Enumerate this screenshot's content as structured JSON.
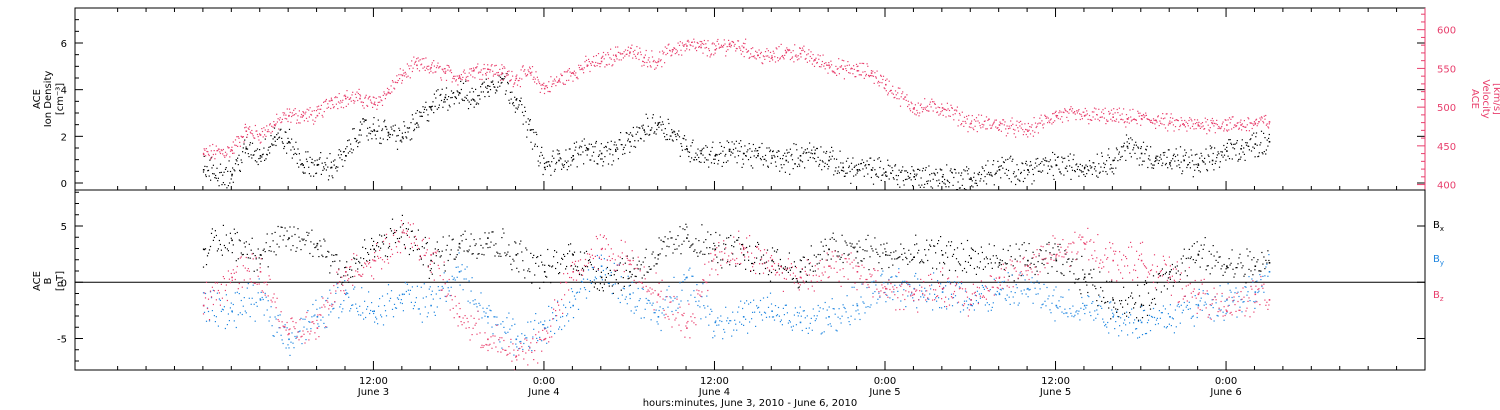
{
  "chart_data": [
    {
      "type": "scatter",
      "panel": "top",
      "ylabel_left": [
        "ACE",
        "Ion Density",
        "[cm⁻³]"
      ],
      "ylabel_right": [
        "ACE",
        "Velocity",
        "[km/s]"
      ],
      "y_left_range": [
        -0.3,
        7.5
      ],
      "y_left_ticks": [
        0,
        2,
        4,
        6
      ],
      "y_right_range": [
        393,
        628
      ],
      "y_right_ticks": [
        400,
        450,
        500,
        550,
        600
      ],
      "colors": {
        "density": "#000000",
        "velocity": "#e83e6c"
      },
      "series": [
        {
          "name": "density",
          "axis": "left",
          "x_hours": [
            0,
            2,
            3,
            4,
            5,
            6,
            7,
            8,
            9,
            10,
            11,
            12,
            13,
            14,
            15,
            16,
            17,
            18,
            19,
            20,
            21,
            22,
            23,
            24,
            25,
            26,
            27,
            28,
            29,
            30,
            31,
            32,
            33,
            34,
            35,
            36,
            37,
            38,
            39,
            40,
            41,
            42,
            43,
            44,
            45,
            46,
            47,
            48,
            50,
            52,
            54,
            56,
            58,
            60,
            62,
            64,
            65,
            66,
            67,
            68,
            69,
            70,
            71,
            72,
            73,
            74,
            75
          ],
          "y": [
            0.6,
            0.4,
            1.5,
            1.2,
            2.0,
            1.8,
            0.8,
            0.8,
            0.7,
            1.2,
            2.3,
            2.3,
            2.2,
            2.0,
            2.6,
            3.3,
            3.7,
            3.9,
            3.6,
            4.2,
            4.5,
            3.6,
            2.3,
            0.7,
            1.0,
            1.2,
            1.5,
            1.3,
            1.4,
            1.8,
            2.3,
            2.6,
            2.2,
            1.5,
            1.3,
            1.2,
            1.4,
            1.3,
            1.2,
            1.1,
            1.0,
            1.2,
            1.3,
            1.0,
            0.7,
            0.6,
            0.6,
            0.5,
            0.3,
            0.3,
            0.2,
            0.6,
            0.6,
            0.8,
            0.7,
            1.0,
            1.6,
            1.3,
            1.1,
            0.9,
            1.0,
            0.8,
            1.0,
            1.4,
            1.5,
            1.7,
            1.8
          ]
        },
        {
          "name": "velocity",
          "axis": "right",
          "x_hours": [
            0,
            2,
            3,
            4,
            5,
            6,
            7,
            8,
            9,
            10,
            11,
            12,
            13,
            14,
            15,
            16,
            17,
            18,
            19,
            20,
            21,
            22,
            23,
            24,
            25,
            26,
            27,
            28,
            29,
            30,
            31,
            32,
            33,
            34,
            35,
            36,
            37,
            38,
            39,
            40,
            41,
            42,
            43,
            44,
            45,
            46,
            47,
            48,
            50,
            52,
            54,
            56,
            58,
            60,
            62,
            64,
            65,
            66,
            67,
            68,
            69,
            70,
            71,
            72,
            73,
            74,
            75
          ],
          "y": [
            440,
            445,
            470,
            465,
            478,
            490,
            490,
            490,
            510,
            512,
            512,
            505,
            520,
            542,
            555,
            552,
            545,
            540,
            548,
            550,
            545,
            538,
            545,
            525,
            535,
            545,
            555,
            560,
            568,
            572,
            565,
            560,
            575,
            580,
            578,
            575,
            582,
            578,
            568,
            565,
            572,
            570,
            562,
            555,
            550,
            548,
            545,
            530,
            500,
            500,
            480,
            478,
            470,
            490,
            490,
            488,
            486,
            486,
            484,
            480,
            478,
            477,
            480,
            478,
            478,
            480,
            482
          ]
        }
      ]
    },
    {
      "type": "scatter",
      "panel": "bottom",
      "ylabel_left": [
        "ACE",
        "B",
        "[nT]"
      ],
      "y_range": [
        -7.8,
        8.2
      ],
      "y_ticks": [
        -5,
        0,
        5
      ],
      "zero_line": true,
      "legend_position": "right",
      "colors": {
        "Bx": "#000000",
        "By": "#1f86e0",
        "Bz": "#e83e6c"
      },
      "series": [
        {
          "name": "Bx",
          "x_hours": [
            0,
            2,
            4,
            6,
            8,
            10,
            12,
            14,
            16,
            18,
            20,
            22,
            24,
            26,
            28,
            30,
            32,
            34,
            36,
            38,
            40,
            42,
            44,
            46,
            48,
            50,
            52,
            54,
            56,
            58,
            60,
            62,
            64,
            66,
            68,
            70,
            72,
            74,
            75
          ],
          "y": [
            3.0,
            3.8,
            2.5,
            4.0,
            3.5,
            1.0,
            3.0,
            4.5,
            2.0,
            3.5,
            4.0,
            2.5,
            1.0,
            2.5,
            0.5,
            1.0,
            2.5,
            4.0,
            3.0,
            2.5,
            2.0,
            1.0,
            3.0,
            2.8,
            2.5,
            2.3,
            2.5,
            2.2,
            1.8,
            2.0,
            2.0,
            0.5,
            -1.5,
            -2.0,
            1.0,
            2.5,
            1.5,
            1.5,
            1.8
          ]
        },
        {
          "name": "By",
          "x_hours": [
            0,
            2,
            4,
            6,
            8,
            10,
            12,
            14,
            16,
            18,
            20,
            22,
            24,
            26,
            28,
            30,
            32,
            34,
            36,
            38,
            40,
            42,
            44,
            46,
            48,
            50,
            52,
            54,
            56,
            58,
            60,
            62,
            64,
            66,
            68,
            70,
            72,
            74,
            75
          ],
          "y": [
            -2.0,
            -2.5,
            -1.5,
            -5.0,
            -3.0,
            -1.0,
            -2.5,
            -1.0,
            -2.0,
            1.0,
            -3.0,
            -5.0,
            -4.0,
            -2.0,
            1.5,
            -1.0,
            -3.0,
            0.5,
            -3.5,
            -3.0,
            -2.5,
            -3.5,
            -3.0,
            -2.0,
            -0.5,
            -0.5,
            -0.8,
            -1.5,
            -1.0,
            -0.5,
            -2.0,
            -2.0,
            -3.0,
            -3.5,
            -3.0,
            -2.0,
            -1.5,
            -0.8,
            1.0
          ]
        },
        {
          "name": "Bz",
          "x_hours": [
            0,
            2,
            4,
            6,
            8,
            10,
            12,
            14,
            16,
            18,
            20,
            22,
            24,
            26,
            28,
            30,
            32,
            34,
            36,
            38,
            40,
            42,
            44,
            46,
            48,
            50,
            52,
            54,
            56,
            58,
            60,
            62,
            64,
            66,
            68,
            70,
            72,
            74,
            75
          ],
          "y": [
            -2.0,
            0.5,
            1.0,
            -4.5,
            -4.0,
            1.0,
            2.0,
            4.5,
            2.5,
            -3.0,
            -5.0,
            -6.5,
            -5.0,
            1.0,
            3.0,
            2.0,
            -1.0,
            -4.0,
            2.5,
            3.0,
            1.5,
            0.5,
            1.5,
            1.0,
            -0.5,
            -1.0,
            -0.5,
            -1.5,
            0.5,
            1.5,
            2.5,
            3.5,
            2.0,
            2.0,
            0.5,
            -1.0,
            -2.5,
            -1.0,
            -1.5
          ]
        }
      ],
      "legend": [
        {
          "label": "B",
          "sub": "x",
          "color": "#000000"
        },
        {
          "label": "B",
          "sub": "y",
          "color": "#1f86e0"
        },
        {
          "label": "B",
          "sub": "z",
          "color": "#e83e6c"
        }
      ]
    }
  ],
  "x_axis": {
    "range_hours": [
      -9,
      86
    ],
    "ticks": [
      {
        "hour": 12,
        "time": "12:00",
        "date": "June 3"
      },
      {
        "hour": 24,
        "time": "0:00",
        "date": "June 4"
      },
      {
        "hour": 36,
        "time": "12:00",
        "date": "June 4"
      },
      {
        "hour": 48,
        "time": "0:00",
        "date": "June 5"
      },
      {
        "hour": 60,
        "time": "12:00",
        "date": "June 5"
      },
      {
        "hour": 72,
        "time": "0:00",
        "date": "June 6"
      }
    ],
    "xlabel": "hours:minutes, June  3, 2010 - June  6, 2010",
    "data_start_hour": 0,
    "data_end_hour": 75
  }
}
